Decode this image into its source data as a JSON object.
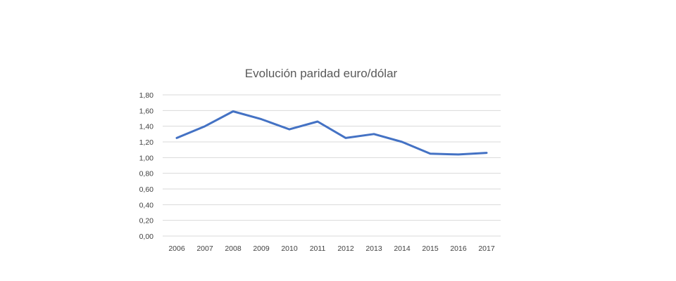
{
  "chart_data": {
    "type": "line",
    "title": "Evolución paridad euro/dólar",
    "xlabel": "",
    "ylabel": "",
    "categories": [
      "2006",
      "2007",
      "2008",
      "2009",
      "2010",
      "2011",
      "2012",
      "2013",
      "2014",
      "2015",
      "2016",
      "2017"
    ],
    "series": [
      {
        "values": [
          1.25,
          1.4,
          1.59,
          1.49,
          1.36,
          1.46,
          1.25,
          1.3,
          1.2,
          1.05,
          1.04,
          1.06
        ],
        "color": "#4472c4"
      }
    ],
    "ylim": [
      0,
      1.8
    ],
    "yticks": [
      "0,00",
      "0,20",
      "0,40",
      "0,60",
      "0,80",
      "1,00",
      "1,20",
      "1,40",
      "1,60",
      "1,80"
    ],
    "grid": true,
    "legend": "none"
  }
}
